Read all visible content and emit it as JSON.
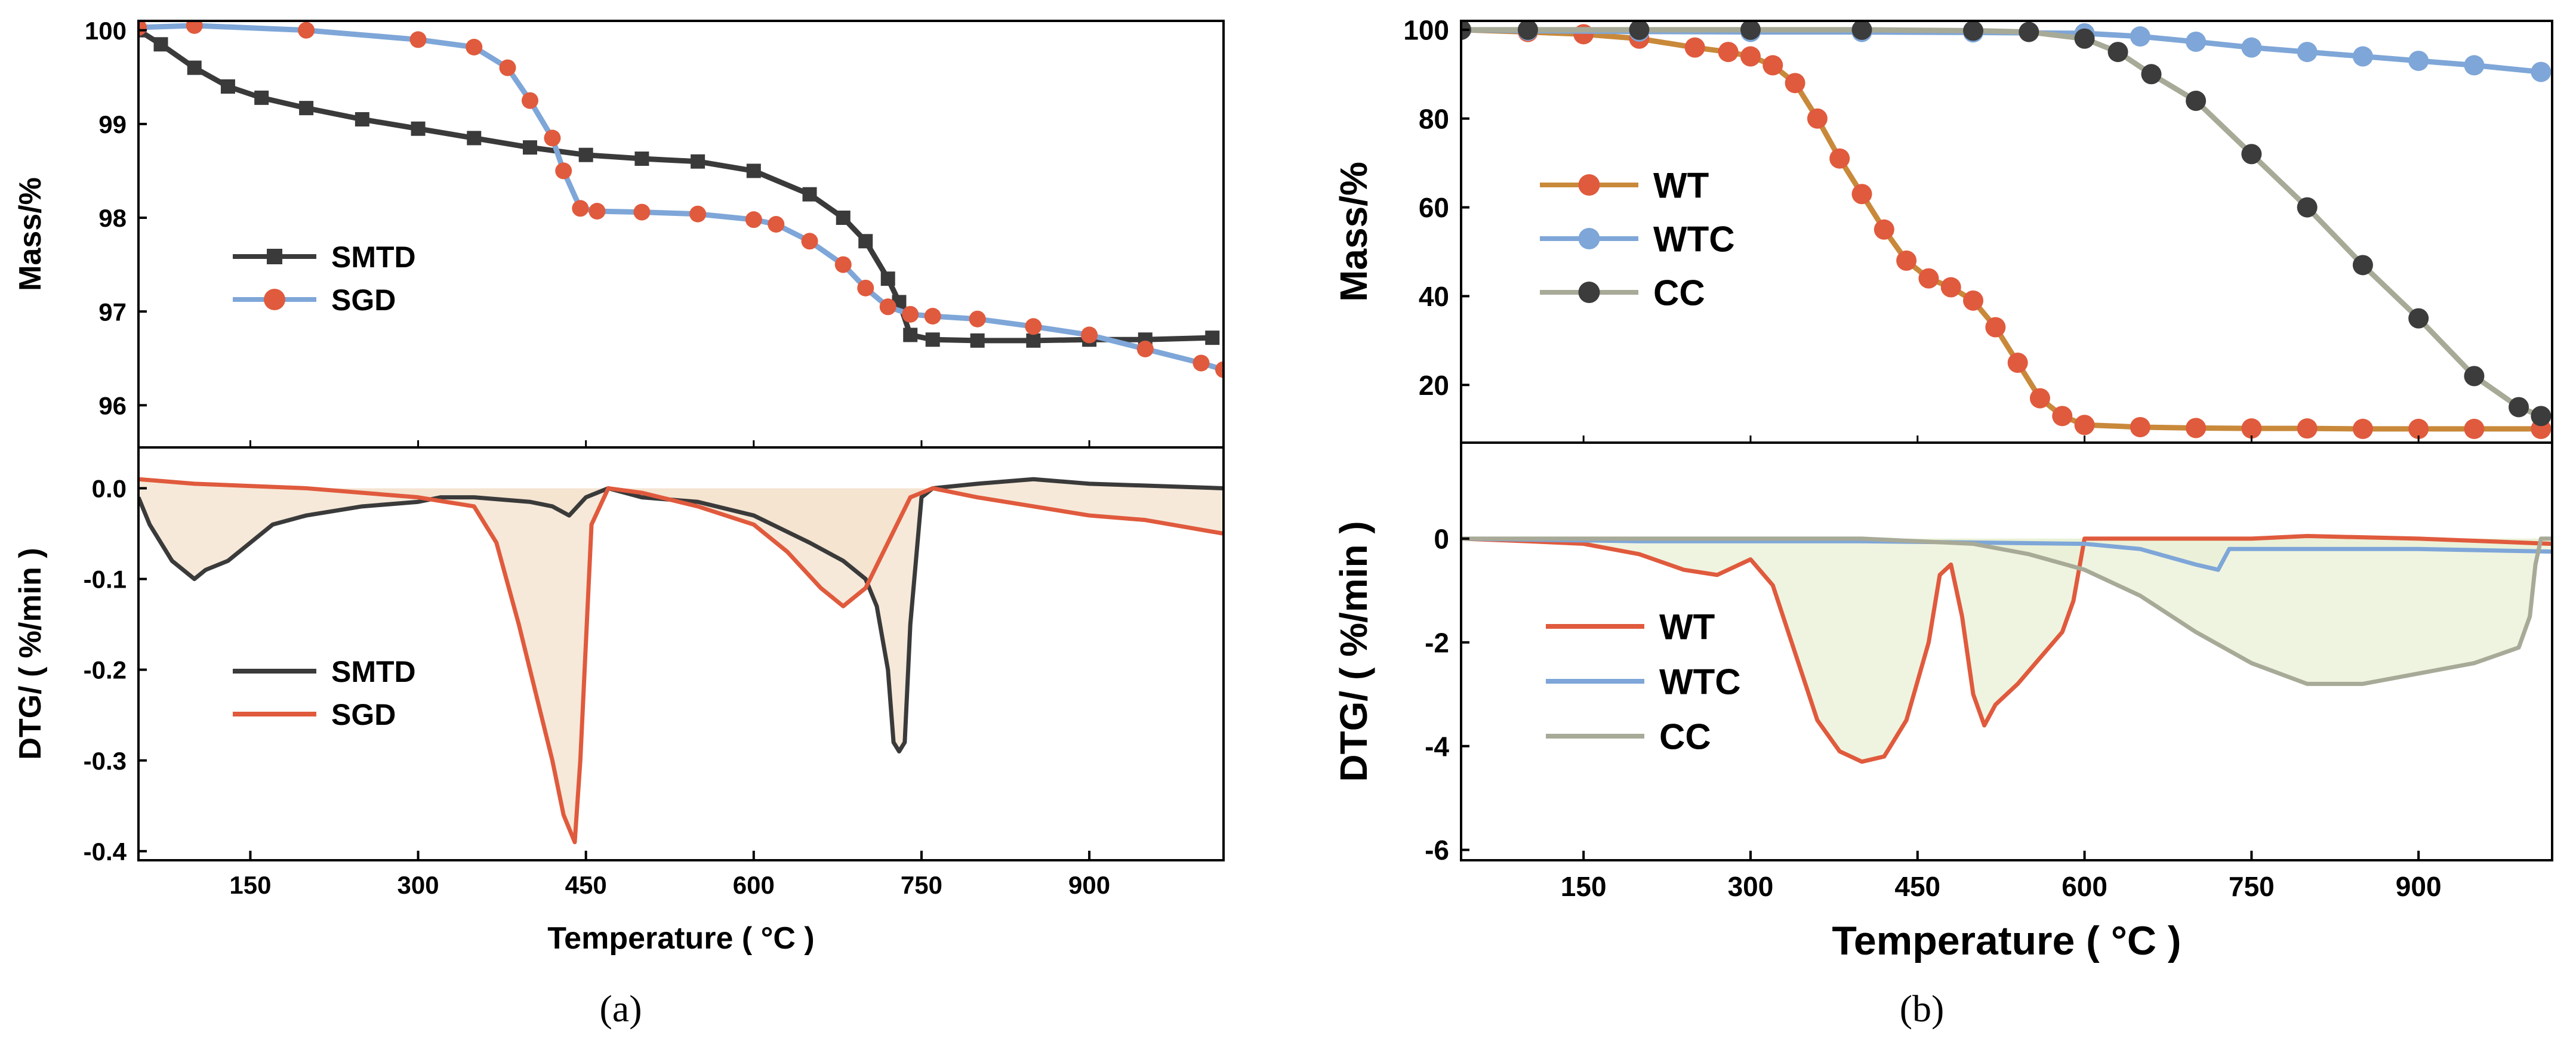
{
  "figure": {
    "caption_a": "(a)",
    "caption_b": "(b)"
  },
  "chart_data": [
    {
      "id": "a",
      "type": "line",
      "x_label": "Temperature ( °C )",
      "x_range": [
        50,
        1020
      ],
      "x_ticks": [
        150,
        300,
        450,
        600,
        750,
        900
      ],
      "top": {
        "ylabel": "Mass/%",
        "ylim": [
          95.55,
          100.1
        ],
        "yticks": [
          96,
          97,
          98,
          99,
          100
        ],
        "legend_position": "center-left",
        "series": [
          {
            "name": "SMTD",
            "color": "#3a3a3a",
            "marker": "square",
            "x": [
              50,
              70,
              100,
              130,
              160,
              200,
              250,
              300,
              350,
              400,
              450,
              500,
              550,
              600,
              650,
              680,
              700,
              720,
              730,
              740,
              760,
              800,
              850,
              900,
              950,
              1010
            ],
            "y": [
              100.0,
              99.85,
              99.6,
              99.4,
              99.28,
              99.17,
              99.05,
              98.95,
              98.85,
              98.75,
              98.67,
              98.63,
              98.6,
              98.5,
              98.25,
              98.0,
              97.75,
              97.35,
              97.1,
              96.75,
              96.7,
              96.69,
              96.69,
              96.7,
              96.7,
              96.72
            ]
          },
          {
            "name": "SGD",
            "color": "#e05a3d",
            "line_color": "#7ea6d8",
            "marker": "circle",
            "x": [
              50,
              100,
              200,
              300,
              350,
              380,
              400,
              420,
              430,
              445,
              460,
              500,
              550,
              600,
              620,
              650,
              680,
              700,
              720,
              740,
              760,
              800,
              850,
              900,
              950,
              1000,
              1020
            ],
            "y": [
              100.03,
              100.05,
              100.0,
              99.9,
              99.82,
              99.6,
              99.25,
              98.85,
              98.5,
              98.1,
              98.07,
              98.06,
              98.04,
              97.98,
              97.93,
              97.75,
              97.5,
              97.25,
              97.05,
              96.97,
              96.95,
              96.92,
              96.84,
              96.75,
              96.6,
              96.45,
              96.38
            ]
          }
        ]
      },
      "bottom": {
        "ylabel": "DTG/ ( %/min )",
        "ylim": [
          -0.41,
          0.045
        ],
        "yticks": [
          0.0,
          -0.1,
          -0.2,
          -0.3,
          -0.4
        ],
        "legend_position": "bottom-left",
        "fill_color": "#f3e1cc",
        "series": [
          {
            "name": "SMTD",
            "color": "#3a3a3a",
            "x": [
              50,
              60,
              80,
              100,
              110,
              130,
              150,
              170,
              200,
              250,
              300,
              320,
              350,
              400,
              420,
              435,
              450,
              470,
              500,
              550,
              600,
              650,
              680,
              700,
              710,
              720,
              725,
              730,
              735,
              740,
              750,
              760,
              800,
              850,
              900,
              1020
            ],
            "y": [
              -0.01,
              -0.04,
              -0.08,
              -0.1,
              -0.09,
              -0.08,
              -0.06,
              -0.04,
              -0.03,
              -0.02,
              -0.015,
              -0.01,
              -0.01,
              -0.015,
              -0.02,
              -0.03,
              -0.01,
              0.0,
              -0.01,
              -0.015,
              -0.03,
              -0.06,
              -0.08,
              -0.1,
              -0.13,
              -0.2,
              -0.28,
              -0.29,
              -0.28,
              -0.15,
              -0.01,
              0.0,
              0.005,
              0.01,
              0.005,
              0.0
            ]
          },
          {
            "name": "SGD",
            "color": "#e05a3d",
            "x": [
              50,
              100,
              200,
              300,
              350,
              370,
              390,
              410,
              420,
              430,
              440,
              445,
              455,
              470,
              500,
              550,
              600,
              630,
              660,
              680,
              700,
              720,
              740,
              760,
              800,
              850,
              900,
              950,
              1020
            ],
            "y": [
              0.01,
              0.005,
              0.0,
              -0.01,
              -0.02,
              -0.06,
              -0.15,
              -0.25,
              -0.3,
              -0.36,
              -0.39,
              -0.3,
              -0.04,
              0.0,
              -0.005,
              -0.02,
              -0.04,
              -0.07,
              -0.11,
              -0.13,
              -0.11,
              -0.06,
              -0.01,
              0.0,
              -0.01,
              -0.02,
              -0.03,
              -0.035,
              -0.05
            ]
          }
        ]
      }
    },
    {
      "id": "b",
      "type": "line",
      "x_label": "Temperature ( °C )",
      "x_range": [
        40,
        1020
      ],
      "x_ticks": [
        150,
        300,
        450,
        600,
        750,
        900
      ],
      "top": {
        "ylabel": "Mass/%",
        "ylim": [
          7,
          102
        ],
        "yticks": [
          20,
          40,
          60,
          80,
          100
        ],
        "legend_position": "top-left",
        "series": [
          {
            "name": "WT",
            "color": "#e05a3d",
            "line_color": "#c9893a",
            "marker": "circle",
            "x": [
              40,
              100,
              150,
              200,
              250,
              280,
              300,
              320,
              340,
              360,
              380,
              400,
              420,
              440,
              460,
              480,
              500,
              520,
              540,
              560,
              580,
              600,
              650,
              700,
              750,
              800,
              850,
              900,
              950,
              1010
            ],
            "y": [
              100,
              99.5,
              99,
              98,
              96,
              95,
              94,
              92,
              88,
              80,
              71,
              63,
              55,
              48,
              44,
              42,
              39,
              33,
              25,
              17,
              13,
              11,
              10.5,
              10.3,
              10.2,
              10.2,
              10.1,
              10.1,
              10.1,
              10.1
            ]
          },
          {
            "name": "WTC",
            "color": "#7ea6d8",
            "marker": "circle",
            "x": [
              40,
              100,
              200,
              300,
              400,
              500,
              600,
              650,
              700,
              750,
              800,
              850,
              900,
              950,
              1010
            ],
            "y": [
              100,
              99.8,
              99.6,
              99.5,
              99.5,
              99.4,
              99.2,
              98.5,
              97.3,
              96,
              95,
              94,
              93,
              92,
              90.5
            ]
          },
          {
            "name": "CC",
            "color": "#3c3c3c",
            "line_color": "#a8aa98",
            "marker": "circle",
            "x": [
              40,
              100,
              200,
              300,
              400,
              500,
              550,
              600,
              630,
              660,
              700,
              750,
              800,
              850,
              900,
              950,
              990,
              1010
            ],
            "y": [
              100,
              100,
              100,
              100,
              100,
              99.8,
              99.5,
              98,
              95,
              90,
              84,
              72,
              60,
              47,
              35,
              22,
              15,
              13
            ]
          }
        ]
      },
      "bottom": {
        "ylabel": "DTG/ ( %/min )",
        "ylim": [
          -6.2,
          1.85
        ],
        "yticks": [
          0,
          -2,
          -4,
          -6
        ],
        "legend_position": "center-left",
        "fill_color": "#e9f0d6",
        "series": [
          {
            "name": "WT",
            "color": "#e05a3d",
            "x": [
              40,
              100,
              150,
              200,
              240,
              270,
              300,
              320,
              340,
              360,
              380,
              400,
              420,
              440,
              460,
              470,
              480,
              490,
              500,
              510,
              520,
              540,
              560,
              580,
              590,
              600,
              650,
              700,
              750,
              800,
              900,
              1020
            ],
            "y": [
              0,
              -0.05,
              -0.1,
              -0.3,
              -0.6,
              -0.7,
              -0.4,
              -0.9,
              -2.2,
              -3.5,
              -4.1,
              -4.3,
              -4.2,
              -3.5,
              -2,
              -0.7,
              -0.5,
              -1.5,
              -3,
              -3.6,
              -3.2,
              -2.8,
              -2.3,
              -1.8,
              -1.2,
              0,
              0,
              0,
              0,
              0.05,
              0,
              -0.1
            ]
          },
          {
            "name": "WTC",
            "color": "#7ea6d8",
            "x": [
              40,
              200,
              400,
              600,
              650,
              700,
              720,
              730,
              750,
              800,
              900,
              1020
            ],
            "y": [
              0,
              -0.05,
              -0.05,
              -0.1,
              -0.2,
              -0.5,
              -0.6,
              -0.2,
              -0.2,
              -0.2,
              -0.2,
              -0.25
            ]
          },
          {
            "name": "CC",
            "color": "#a8aa98",
            "x": [
              40,
              200,
              400,
              500,
              550,
              600,
              650,
              700,
              750,
              800,
              850,
              900,
              950,
              990,
              1000,
              1005,
              1010,
              1020
            ],
            "y": [
              0,
              0,
              0,
              -0.1,
              -0.3,
              -0.6,
              -1.1,
              -1.8,
              -2.4,
              -2.8,
              -2.8,
              -2.6,
              -2.4,
              -2.1,
              -1.5,
              -0.5,
              0,
              0
            ]
          }
        ]
      }
    }
  ]
}
